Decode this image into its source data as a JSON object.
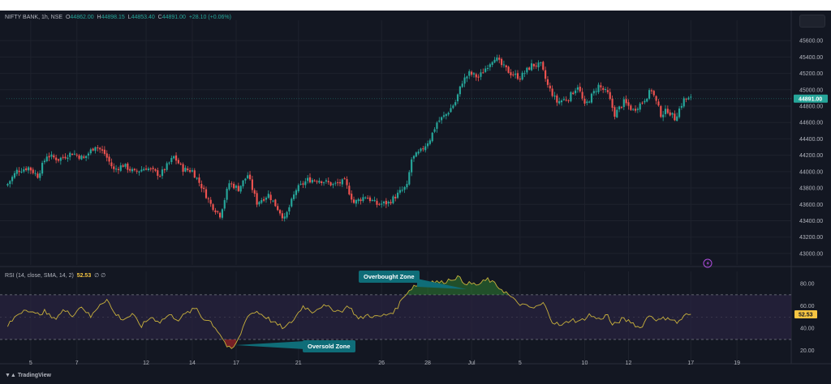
{
  "header": {
    "symbol": "NIFTY BANK, 1h, NSE",
    "o_label": "O",
    "o": "44862.00",
    "h_label": "H",
    "h": "44898.15",
    "l_label": "L",
    "l": "44853.40",
    "c_label": "C",
    "c": "44891.00",
    "change": "+28.10 (+0.06%)"
  },
  "rsi_legend": {
    "label": "RSI (14, close, SMA, 14, 2)",
    "value": "52.53",
    "extra": "∅ ∅"
  },
  "annotations": {
    "overbought": "Overbought Zone",
    "oversold": "Oversold Zone"
  },
  "watermark": "TradingView",
  "colors": {
    "background": "#131722",
    "up": "#26a69a",
    "down": "#ef5350",
    "rsi_line": "#c9b13c",
    "rsi_band": "#2a2340",
    "callout": "#0f6d78"
  },
  "chart_data": [
    {
      "type": "candlestick",
      "x_ticks": [
        "5",
        "7",
        "12",
        "14",
        "17",
        "21",
        "26",
        "28",
        "Jul",
        "5",
        "10",
        "12",
        "17",
        "19"
      ],
      "y_ticks": [
        43000,
        43200,
        43400,
        43600,
        43800,
        44000,
        44200,
        44400,
        44600,
        44800,
        45000,
        45200,
        45400,
        45600
      ],
      "ylim": [
        42900,
        45750
      ],
      "last_price": 44891.0,
      "last_price_label": "44891.00",
      "close_path": [
        [
          0,
          43850
        ],
        [
          4,
          44010
        ],
        [
          9,
          44050
        ],
        [
          13,
          43950
        ],
        [
          17,
          44200
        ],
        [
          22,
          44150
        ],
        [
          28,
          44230
        ],
        [
          33,
          44160
        ],
        [
          38,
          44320
        ],
        [
          42,
          44220
        ],
        [
          46,
          44020
        ],
        [
          50,
          44080
        ],
        [
          55,
          43990
        ],
        [
          60,
          44050
        ],
        [
          66,
          43960
        ],
        [
          72,
          44180
        ],
        [
          76,
          44030
        ],
        [
          80,
          44010
        ],
        [
          84,
          43820
        ],
        [
          88,
          43600
        ],
        [
          92,
          43470
        ],
        [
          96,
          43860
        ],
        [
          100,
          43790
        ],
        [
          104,
          43960
        ],
        [
          108,
          43620
        ],
        [
          113,
          43720
        ],
        [
          117,
          43550
        ],
        [
          120,
          43420
        ],
        [
          125,
          43780
        ],
        [
          130,
          43900
        ],
        [
          135,
          43900
        ],
        [
          141,
          43840
        ],
        [
          146,
          43880
        ],
        [
          150,
          43620
        ],
        [
          155,
          43700
        ],
        [
          160,
          43600
        ],
        [
          165,
          43620
        ],
        [
          170,
          43750
        ],
        [
          173,
          43820
        ],
        [
          175,
          44150
        ],
        [
          179,
          44250
        ],
        [
          183,
          44400
        ],
        [
          186,
          44600
        ],
        [
          190,
          44700
        ],
        [
          194,
          44850
        ],
        [
          197,
          45100
        ],
        [
          200,
          45200
        ],
        [
          204,
          45150
        ],
        [
          208,
          45300
        ],
        [
          211,
          45400
        ],
        [
          214,
          45300
        ],
        [
          218,
          45200
        ],
        [
          222,
          45150
        ],
        [
          227,
          45300
        ],
        [
          231,
          45300
        ],
        [
          234,
          45050
        ],
        [
          238,
          44850
        ],
        [
          243,
          44900
        ],
        [
          247,
          45050
        ],
        [
          250,
          44800
        ],
        [
          256,
          45050
        ],
        [
          260,
          44950
        ],
        [
          263,
          44700
        ],
        [
          267,
          44850
        ],
        [
          271,
          44750
        ],
        [
          275,
          44850
        ],
        [
          279,
          45000
        ],
        [
          283,
          44700
        ],
        [
          286,
          44750
        ],
        [
          289,
          44650
        ],
        [
          293,
          44880
        ],
        [
          296,
          44891
        ]
      ]
    },
    {
      "type": "line",
      "name": "RSI (14, close, SMA, 14, 2)",
      "y_ticks": [
        20,
        40,
        60,
        80
      ],
      "ylim": [
        14,
        91
      ],
      "band": [
        30,
        70
      ],
      "last_value": 52.53,
      "last_value_label": "52.53",
      "path": [
        [
          0,
          42
        ],
        [
          4,
          52
        ],
        [
          8,
          58
        ],
        [
          12,
          52
        ],
        [
          16,
          55
        ],
        [
          20,
          48
        ],
        [
          24,
          56
        ],
        [
          28,
          52
        ],
        [
          32,
          60
        ],
        [
          36,
          50
        ],
        [
          40,
          62
        ],
        [
          43,
          66
        ],
        [
          46,
          54
        ],
        [
          50,
          48
        ],
        [
          54,
          52
        ],
        [
          58,
          42
        ],
        [
          62,
          50
        ],
        [
          66,
          46
        ],
        [
          70,
          52
        ],
        [
          74,
          48
        ],
        [
          78,
          54
        ],
        [
          82,
          58
        ],
        [
          84,
          50
        ],
        [
          88,
          46
        ],
        [
          92,
          35
        ],
        [
          95,
          24
        ],
        [
          97,
          20
        ],
        [
          100,
          30
        ],
        [
          104,
          52
        ],
        [
          108,
          55
        ],
        [
          112,
          50
        ],
        [
          116,
          44
        ],
        [
          120,
          40
        ],
        [
          124,
          48
        ],
        [
          128,
          60
        ],
        [
          132,
          55
        ],
        [
          136,
          60
        ],
        [
          140,
          58
        ],
        [
          144,
          55
        ],
        [
          148,
          60
        ],
        [
          152,
          48
        ],
        [
          156,
          52
        ],
        [
          160,
          50
        ],
        [
          164,
          52
        ],
        [
          168,
          56
        ],
        [
          172,
          70
        ],
        [
          176,
          78
        ],
        [
          180,
          80
        ],
        [
          184,
          82
        ],
        [
          188,
          81
        ],
        [
          192,
          84
        ],
        [
          195,
          86
        ],
        [
          197,
          82
        ],
        [
          200,
          80
        ],
        [
          204,
          79
        ],
        [
          208,
          84
        ],
        [
          212,
          78
        ],
        [
          216,
          72
        ],
        [
          220,
          64
        ],
        [
          224,
          60
        ],
        [
          228,
          58
        ],
        [
          232,
          62
        ],
        [
          234,
          56
        ],
        [
          236,
          46
        ],
        [
          240,
          42
        ],
        [
          244,
          48
        ],
        [
          248,
          46
        ],
        [
          252,
          52
        ],
        [
          256,
          48
        ],
        [
          260,
          52
        ],
        [
          262,
          42
        ],
        [
          266,
          48
        ],
        [
          270,
          46
        ],
        [
          274,
          40
        ],
        [
          278,
          52
        ],
        [
          282,
          47
        ],
        [
          286,
          50
        ],
        [
          290,
          45
        ],
        [
          294,
          52
        ],
        [
          296,
          52.53
        ]
      ]
    }
  ]
}
